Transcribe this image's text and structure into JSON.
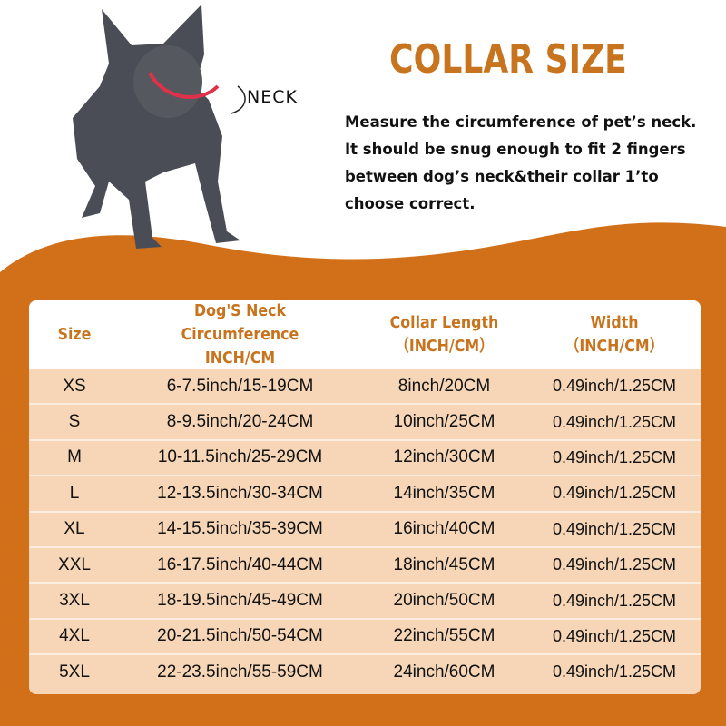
{
  "neck_label": "NECK",
  "title": "COLLAR SIZE",
  "description": [
    "Measure the circumference of pet’s neck.",
    "It should be snug enough to fit 2 fingers",
    "between dog’s neck&their collar 1’to",
    "choose correct."
  ],
  "colors": {
    "accent": "#d2701a",
    "header_text": "#c8741f",
    "row_bg": "#f6d6b6"
  },
  "table": {
    "headers": [
      {
        "line1": "Size",
        "line2": ""
      },
      {
        "line1": "Dog'S Neck Circumference",
        "line2": "INCH/CM"
      },
      {
        "line1": "Collar Length",
        "line2": "（INCH/CM）"
      },
      {
        "line1": "Width",
        "line2": "（INCH/CM）"
      }
    ],
    "rows": [
      [
        "XS",
        "6-7.5inch/15-19CM",
        "8inch/20CM",
        "0.49inch/1.25CM"
      ],
      [
        "S",
        "8-9.5inch/20-24CM",
        "10inch/25CM",
        "0.49inch/1.25CM"
      ],
      [
        "M",
        "10-11.5inch/25-29CM",
        "12inch/30CM",
        "0.49inch/1.25CM"
      ],
      [
        "L",
        "12-13.5inch/30-34CM",
        "14inch/35CM",
        "0.49inch/1.25CM"
      ],
      [
        "XL",
        "14-15.5inch/35-39CM",
        "16inch/40CM",
        "0.49inch/1.25CM"
      ],
      [
        "XXL",
        "16-17.5inch/40-44CM",
        "18inch/45CM",
        "0.49inch/1.25CM"
      ],
      [
        "3XL",
        "18-19.5inch/45-49CM",
        "20inch/50CM",
        "0.49inch/1.25CM"
      ],
      [
        "4XL",
        "20-21.5inch/50-54CM",
        "22inch/55CM",
        "0.49inch/1.25CM"
      ],
      [
        "5XL",
        "22-23.5inch/55-59CM",
        "24inch/60CM",
        "0.49inch/1.25CM"
      ]
    ]
  }
}
